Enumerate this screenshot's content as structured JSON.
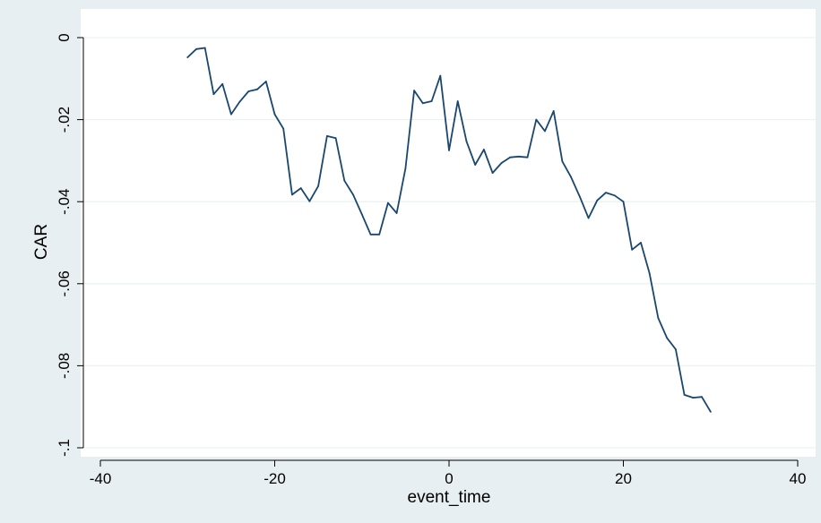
{
  "chart_data": {
    "type": "line",
    "title": "",
    "xlabel": "event_time",
    "ylabel": "CAR",
    "xlim": [
      -40,
      40
    ],
    "ylim": [
      -0.1,
      0
    ],
    "xticks": [
      -40,
      -20,
      0,
      20,
      40
    ],
    "xtick_labels": [
      "-40",
      "-20",
      "0",
      "20",
      "40"
    ],
    "yticks": [
      0,
      -0.02,
      -0.04,
      -0.06,
      -0.08,
      -0.1
    ],
    "ytick_labels": [
      "0",
      "-.02",
      "-.04",
      "-.06",
      "-.08",
      "-.1"
    ],
    "grid": true,
    "legend": "none",
    "colors": {
      "outer_background": "#e8eff2",
      "plot_background": "#ffffff",
      "grid": "#eaf2f3",
      "line": "#1a476f",
      "axis": "#000000"
    },
    "series": [
      {
        "x": [
          -30,
          -29,
          -28,
          -27,
          -26,
          -25,
          -24,
          -23,
          -22,
          -21,
          -20,
          -19,
          -18,
          -17,
          -16,
          -15,
          -14,
          -13,
          -12,
          -11,
          -10,
          -9,
          -8,
          -7,
          -6,
          -5,
          -4,
          -3,
          -2,
          -1,
          0,
          1,
          2,
          3,
          4,
          5,
          6,
          7,
          8,
          9,
          10,
          11,
          12,
          13,
          14,
          15,
          16,
          17,
          18,
          19,
          20,
          21,
          22,
          23,
          24,
          25,
          26,
          27,
          28,
          29,
          30
        ],
        "y": [
          -0.0048,
          -0.0028,
          -0.0025,
          -0.0138,
          -0.0113,
          -0.0187,
          -0.0156,
          -0.0131,
          -0.0126,
          -0.0107,
          -0.0187,
          -0.0222,
          -0.0383,
          -0.0367,
          -0.0399,
          -0.0362,
          -0.024,
          -0.0245,
          -0.0349,
          -0.0383,
          -0.0431,
          -0.048,
          -0.048,
          -0.0403,
          -0.0428,
          -0.0319,
          -0.0129,
          -0.016,
          -0.0155,
          -0.0093,
          -0.0275,
          -0.0155,
          -0.0253,
          -0.031,
          -0.0273,
          -0.033,
          -0.0306,
          -0.0292,
          -0.029,
          -0.0292,
          -0.02,
          -0.0228,
          -0.0179,
          -0.0302,
          -0.034,
          -0.0388,
          -0.044,
          -0.0397,
          -0.0378,
          -0.0385,
          -0.04,
          -0.0517,
          -0.05,
          -0.0575,
          -0.0684,
          -0.0732,
          -0.076,
          -0.0871,
          -0.0878,
          -0.0876,
          -0.0912
        ]
      }
    ]
  }
}
